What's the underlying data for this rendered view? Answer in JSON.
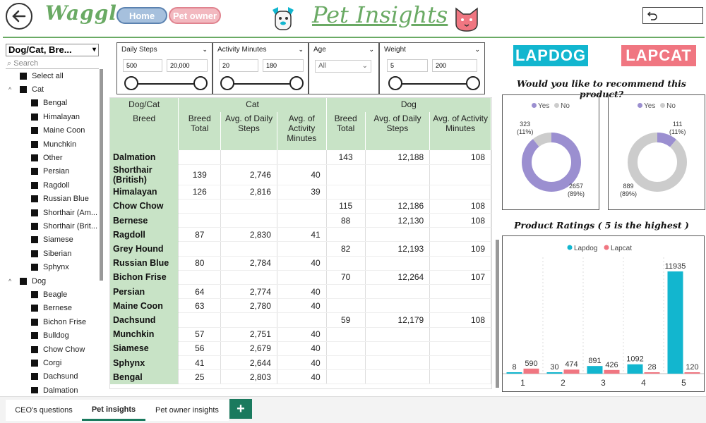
{
  "header": {
    "logo": "Waggle",
    "nav_home": "Home",
    "nav_pet_owner": "Pet owner",
    "title": "Pet Insights"
  },
  "slicer": {
    "dropdown": "Dog/Cat, Bre...",
    "search_placeholder": "Search",
    "select_all": "Select all",
    "cat_label": "Cat",
    "cat_items": [
      "Bengal",
      "Himalayan",
      "Maine Coon",
      "Munchkin",
      "Other",
      "Persian",
      "Ragdoll",
      "Russian Blue",
      "Shorthair (Am...",
      "Shorthair (Brit...",
      "Siamese",
      "Siberian",
      "Sphynx"
    ],
    "dog_label": "Dog",
    "dog_items": [
      "Beagle",
      "Bernese",
      "Bichon Frise",
      "Bulldog",
      "Chow Chow",
      "Corgi",
      "Dachsund",
      "Dalmation"
    ]
  },
  "filters": {
    "daily_steps": {
      "label": "Daily Steps",
      "min": "500",
      "max": "20,000"
    },
    "activity_minutes": {
      "label": "Activity Minutes",
      "min": "20",
      "max": "180"
    },
    "age": {
      "label": "Age",
      "value": "All"
    },
    "weight": {
      "label": "Weight",
      "min": "5",
      "max": "200"
    }
  },
  "table": {
    "group_header": "Dog/Cat",
    "breed_header": "Breed",
    "cat_header": "Cat",
    "dog_header": "Dog",
    "sub_headers": [
      "Breed Total",
      "Avg. of Daily Steps",
      "Avg. of Activity Minutes",
      "Breed Total",
      "Avg. of Daily Steps",
      "Avg. of Activity Minutes"
    ],
    "rows": [
      {
        "breed": "Dalmation",
        "c1": "",
        "c2": "",
        "c3": "",
        "d1": "143",
        "d2": "12,188",
        "d3": "108"
      },
      {
        "breed": "Shorthair (British)",
        "c1": "139",
        "c2": "2,746",
        "c3": "40",
        "d1": "",
        "d2": "",
        "d3": ""
      },
      {
        "breed": "Himalayan",
        "c1": "126",
        "c2": "2,816",
        "c3": "39",
        "d1": "",
        "d2": "",
        "d3": ""
      },
      {
        "breed": "Chow Chow",
        "c1": "",
        "c2": "",
        "c3": "",
        "d1": "115",
        "d2": "12,186",
        "d3": "108"
      },
      {
        "breed": "Bernese",
        "c1": "",
        "c2": "",
        "c3": "",
        "d1": "88",
        "d2": "12,130",
        "d3": "108"
      },
      {
        "breed": "Ragdoll",
        "c1": "87",
        "c2": "2,830",
        "c3": "41",
        "d1": "",
        "d2": "",
        "d3": ""
      },
      {
        "breed": "Grey Hound",
        "c1": "",
        "c2": "",
        "c3": "",
        "d1": "82",
        "d2": "12,193",
        "d3": "109"
      },
      {
        "breed": "Russian Blue",
        "c1": "80",
        "c2": "2,784",
        "c3": "40",
        "d1": "",
        "d2": "",
        "d3": ""
      },
      {
        "breed": "Bichon Frise",
        "c1": "",
        "c2": "",
        "c3": "",
        "d1": "70",
        "d2": "12,264",
        "d3": "107"
      },
      {
        "breed": "Persian",
        "c1": "64",
        "c2": "2,774",
        "c3": "40",
        "d1": "",
        "d2": "",
        "d3": ""
      },
      {
        "breed": "Maine Coon",
        "c1": "63",
        "c2": "2,780",
        "c3": "40",
        "d1": "",
        "d2": "",
        "d3": ""
      },
      {
        "breed": "Dachsund",
        "c1": "",
        "c2": "",
        "c3": "",
        "d1": "59",
        "d2": "12,179",
        "d3": "108"
      },
      {
        "breed": "Munchkin",
        "c1": "57",
        "c2": "2,751",
        "c3": "40",
        "d1": "",
        "d2": "",
        "d3": ""
      },
      {
        "breed": "Siamese",
        "c1": "56",
        "c2": "2,679",
        "c3": "40",
        "d1": "",
        "d2": "",
        "d3": ""
      },
      {
        "breed": "Sphynx",
        "c1": "41",
        "c2": "2,644",
        "c3": "40",
        "d1": "",
        "d2": "",
        "d3": ""
      },
      {
        "breed": "Bengal",
        "c1": "25",
        "c2": "2,803",
        "c3": "40",
        "d1": "",
        "d2": "",
        "d3": ""
      }
    ]
  },
  "brands": {
    "dog": "LAPDOG",
    "cat": "LAPCAT"
  },
  "recommend": {
    "title": "Would you like to recommend this product?",
    "legend_yes": "Yes",
    "legend_no": "No",
    "lapdog": {
      "yes": 2657,
      "yes_pct": "(89%)",
      "no": 323,
      "no_pct": "(11%)"
    },
    "lapcat": {
      "yes": 111,
      "yes_pct": "(11%)",
      "no": 889,
      "no_pct": "(89%)"
    }
  },
  "ratings_title": "Product Ratings ( 5 is the highest )",
  "chart_data": {
    "type": "bar",
    "categories": [
      "1",
      "2",
      "3",
      "4",
      "5"
    ],
    "series": [
      {
        "name": "Lapdog",
        "values": [
          8,
          30,
          891,
          1092,
          11935
        ],
        "color": "#12b6cf"
      },
      {
        "name": "Lapcat",
        "values": [
          590,
          474,
          426,
          28,
          120
        ],
        "color": "#f07681"
      }
    ],
    "legend": "top-center"
  },
  "colors": {
    "green": "#6aaa64",
    "lapdog": "#12b6cf",
    "lapcat": "#f07681",
    "yes": "#9b8fd0",
    "no": "#cccccc"
  },
  "tabs": [
    "CEO's questions",
    "Pet insights",
    "Pet owner insights"
  ],
  "active_tab": "Pet insights"
}
